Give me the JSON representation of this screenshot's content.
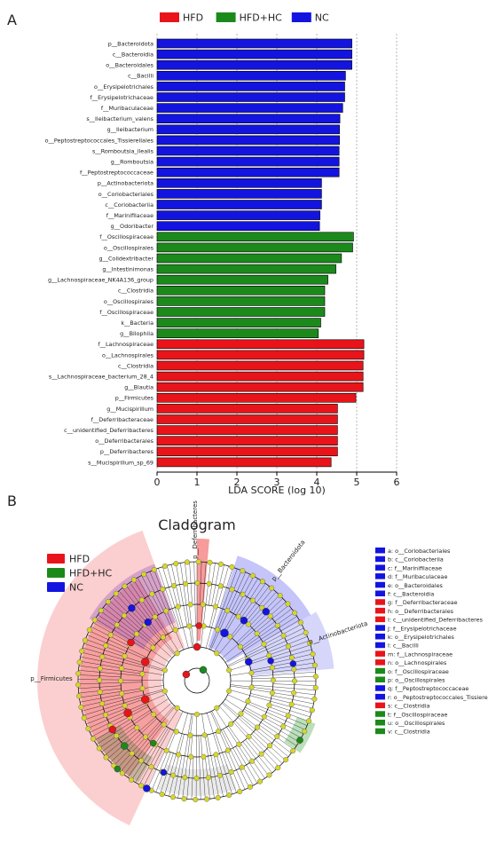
{
  "panel_a_label": "A",
  "panel_b_label": "B",
  "groups": [
    {
      "name": "HFD",
      "color": "#e8141a"
    },
    {
      "name": "HFD+HC",
      "color": "#1b8a1b"
    },
    {
      "name": "NC",
      "color": "#1414e0"
    }
  ],
  "chart_data": [
    {
      "type": "bar",
      "orientation": "horizontal",
      "xlabel": "LDA SCORE (log 10)",
      "xlim": [
        0,
        6
      ],
      "xticks": [
        0,
        1,
        2,
        3,
        4,
        5,
        6
      ],
      "legend": "top",
      "grid": "vertical dashed at ticks",
      "categories": [
        "p__Bacteroidota",
        "c__Bacteroidia",
        "o__Bacteroidales",
        "c__Bacilli",
        "o__Erysipelotrichales",
        "f__Erysipelotrichaceae",
        "f__Muribaculaceae",
        "s__Ileibacterium_valens",
        "g__Ileibacterium",
        "o__Peptostreptococcales_Tissierellales",
        "s__Romboutsia_ilealis",
        "g__Romboutsia",
        "f__Peptostreptococcaceae",
        "p__Actinobacteriota",
        "o__Coriobacteriales",
        "c__Coriobacteriia",
        "f__Marinifilaceae",
        "g__Odoribacter",
        "f__Oscillospiraceae",
        "o__Oscillospirales",
        "g__Colidextribacter",
        "g__Intestinimonas",
        "g__Lachnospiraceae_NK4A136_group",
        "c__Clostridia",
        "o__Oscillospirales",
        "f__Oscillospiraceae",
        "k__Bacteria",
        "g__Bilophila",
        "f__Lachnospiraceae",
        "o__Lachnospirales",
        "c__Clostridia",
        "s__Lachnospiraceae_bacterium_28_4",
        "g__Blautia",
        "p__Firmicutes",
        "g__Mucispirillum",
        "f__Deferribacteraceae",
        "c__unidentified_Deferribacteres",
        "o__Deferribacterales",
        "p__Deferribacteres",
        "s__Mucispirillum_sp_69"
      ],
      "values": [
        4.88,
        4.88,
        4.88,
        4.72,
        4.7,
        4.7,
        4.65,
        4.58,
        4.57,
        4.57,
        4.56,
        4.56,
        4.56,
        4.12,
        4.12,
        4.12,
        4.08,
        4.07,
        4.92,
        4.9,
        4.62,
        4.48,
        4.28,
        4.2,
        4.2,
        4.2,
        4.1,
        4.04,
        5.18,
        5.18,
        5.16,
        5.16,
        5.16,
        4.98,
        4.52,
        4.52,
        4.52,
        4.52,
        4.52,
        4.36
      ],
      "groups": [
        "NC",
        "NC",
        "NC",
        "NC",
        "NC",
        "NC",
        "NC",
        "NC",
        "NC",
        "NC",
        "NC",
        "NC",
        "NC",
        "NC",
        "NC",
        "NC",
        "NC",
        "NC",
        "HFD+HC",
        "HFD+HC",
        "HFD+HC",
        "HFD+HC",
        "HFD+HC",
        "HFD+HC",
        "HFD+HC",
        "HFD+HC",
        "HFD+HC",
        "HFD+HC",
        "HFD",
        "HFD",
        "HFD",
        "HFD",
        "HFD",
        "HFD",
        "HFD",
        "HFD",
        "HFD",
        "HFD",
        "HFD",
        "HFD"
      ]
    },
    {
      "type": "cladogram",
      "title": "Cladogram",
      "legend_entries": [
        {
          "key": "a",
          "label": "o__Coriobacteriales",
          "group": "NC"
        },
        {
          "key": "b",
          "label": "c__Coriobacteriia",
          "group": "NC"
        },
        {
          "key": "c",
          "label": "f__Marinifilaceae",
          "group": "NC"
        },
        {
          "key": "d",
          "label": "f__Muribaculaceae",
          "group": "NC"
        },
        {
          "key": "e",
          "label": "o__Bacteroidales",
          "group": "NC"
        },
        {
          "key": "f",
          "label": "c__Bacteroidia",
          "group": "NC"
        },
        {
          "key": "g",
          "label": "f__Deferribacteraceae",
          "group": "HFD"
        },
        {
          "key": "h",
          "label": "o__Deferribacterales",
          "group": "HFD"
        },
        {
          "key": "i",
          "label": "c__unidentified_Deferribacteres",
          "group": "HFD"
        },
        {
          "key": "j",
          "label": "f__Erysipelotrichaceae",
          "group": "NC"
        },
        {
          "key": "k",
          "label": "o__Erysipelotrichales",
          "group": "NC"
        },
        {
          "key": "l",
          "label": "c__Bacilli",
          "group": "NC"
        },
        {
          "key": "m",
          "label": "f__Lachnospiraceae",
          "group": "HFD"
        },
        {
          "key": "n",
          "label": "o__Lachnospirales",
          "group": "HFD"
        },
        {
          "key": "o",
          "label": "f__Oscillospiraceae",
          "group": "HFD+HC"
        },
        {
          "key": "p",
          "label": "o__Oscillospirales",
          "group": "HFD+HC"
        },
        {
          "key": "q",
          "label": "f__Peptostreptococcaceae",
          "group": "NC"
        },
        {
          "key": "r",
          "label": "o__Peptostreptococcales_Tissierellales",
          "group": "NC"
        },
        {
          "key": "s",
          "label": "c__Clostridia",
          "group": "HFD"
        },
        {
          "key": "t",
          "label": "f__Oscillospiraceae",
          "group": "HFD+HC"
        },
        {
          "key": "u",
          "label": "o__Oscillospirales",
          "group": "HFD+HC"
        },
        {
          "key": "v",
          "label": "c__Clostridia",
          "group": "HFD+HC"
        }
      ],
      "clade_labels": [
        "p__Deferribacteres",
        "p__Bacteroidota",
        "p__Actinobacteriota",
        "p__Firmicutes"
      ]
    }
  ]
}
